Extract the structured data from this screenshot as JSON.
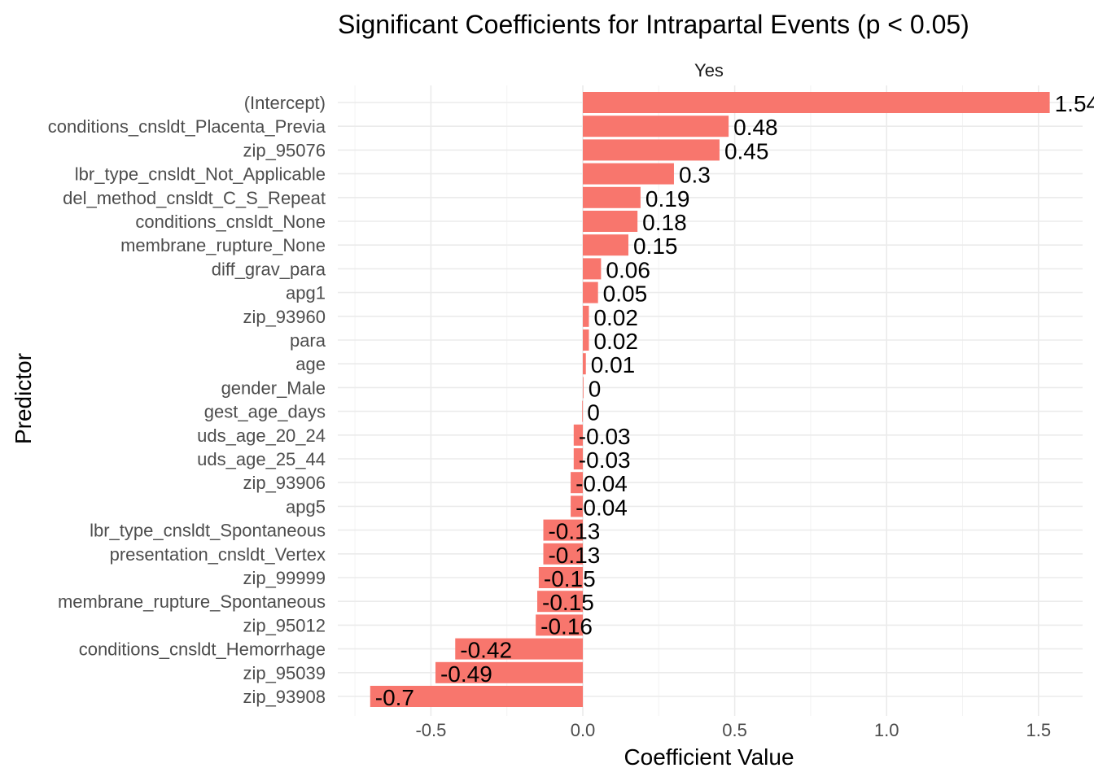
{
  "chart_data": {
    "type": "bar",
    "orientation": "horizontal",
    "title": "Significant Coefficients for Intrapartal Events (p < 0.05)",
    "facet_label": "Yes",
    "xlabel": "Coefficient Value",
    "ylabel": "Predictor",
    "xlim": [
      -0.75,
      1.65
    ],
    "xticks": [
      -0.5,
      0.0,
      0.5,
      1.0,
      1.5
    ],
    "xtick_labels": [
      "-0.5",
      "0.0",
      "0.5",
      "1.0",
      "1.5"
    ],
    "grid": true,
    "bar_color": "#F8766D",
    "categories": [
      "(Intercept)",
      "conditions_cnsldt_Placenta_Previa",
      "zip_95076",
      "lbr_type_cnsldt_Not_Applicable",
      "del_method_cnsldt_C_S_Repeat",
      "conditions_cnsldt_None",
      "membrane_rupture_None",
      "diff_grav_para",
      "apg1",
      "zip_93960",
      "para",
      "age",
      "gender_Male",
      "gest_age_days",
      "uds_age_20_24",
      "uds_age_25_44",
      "zip_93906",
      "apg5",
      "lbr_type_cnsldt_Spontaneous",
      "presentation_cnsldt_Vertex",
      "zip_99999",
      "membrane_rupture_Spontaneous",
      "zip_95012",
      "conditions_cnsldt_Hemorrhage",
      "zip_95039",
      "zip_93908"
    ],
    "values": [
      1.537,
      0.48,
      0.45,
      0.3,
      0.19,
      0.18,
      0.15,
      0.06,
      0.05,
      0.02,
      0.02,
      0.01,
      0.002,
      -0.002,
      -0.03,
      -0.03,
      -0.04,
      -0.04,
      -0.13,
      -0.13,
      -0.145,
      -0.15,
      -0.155,
      -0.42,
      -0.485,
      -0.7
    ],
    "data_labels": [
      "1.54",
      "0.48",
      "0.45",
      "0.3",
      "0.19",
      "0.18",
      "0.15",
      "0.06",
      "0.05",
      "0.02",
      "0.02",
      "0.01",
      "0",
      "0",
      "-0.03",
      "-0.03",
      "-0.04",
      "-0.04",
      "-0.13",
      "-0.13",
      "-0.15",
      "-0.15",
      "-0.16",
      "-0.42",
      "-0.49",
      "-0.7"
    ]
  }
}
